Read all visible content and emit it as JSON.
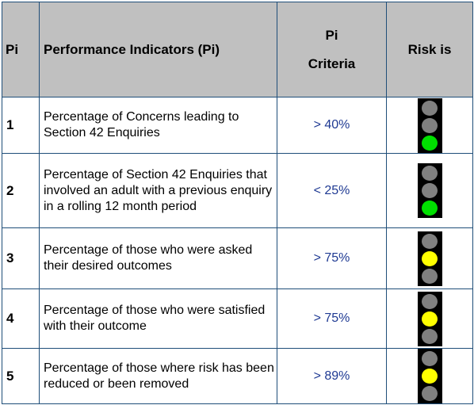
{
  "header": {
    "pi": "Pi",
    "indicators": "Performance Indicators (Pi)",
    "criteria_line1": "Pi",
    "criteria_line2": "Criteria",
    "risk": "Risk is"
  },
  "lamp_colors": {
    "off": "#808080",
    "green": "#00e000",
    "yellow": "#ffff00"
  },
  "rows": [
    {
      "num": "1",
      "indicator": "Percentage of Concerns leading to Section 42 Enquiries",
      "criteria": "> 40%",
      "risk": "green",
      "lamps": [
        "off",
        "off",
        "green"
      ]
    },
    {
      "num": "2",
      "indicator": "Percentage of Section 42 Enquiries that involved an adult with a previous enquiry in a rolling 12 month period",
      "criteria": "< 25%",
      "risk": "green",
      "lamps": [
        "off",
        "off",
        "green"
      ]
    },
    {
      "num": "3",
      "indicator": "Percentage of those who were asked their desired outcomes",
      "criteria": "> 75%",
      "risk": "amber",
      "lamps": [
        "off",
        "yellow",
        "off"
      ]
    },
    {
      "num": "4",
      "indicator": "Percentage of those who were satisfied with their outcome",
      "criteria": "> 75%",
      "risk": "amber",
      "lamps": [
        "off",
        "yellow",
        "off"
      ]
    },
    {
      "num": "5",
      "indicator": "Percentage of those where risk has been reduced or been removed",
      "criteria": "> 89%",
      "risk": "amber",
      "lamps": [
        "off",
        "yellow",
        "off"
      ]
    }
  ]
}
